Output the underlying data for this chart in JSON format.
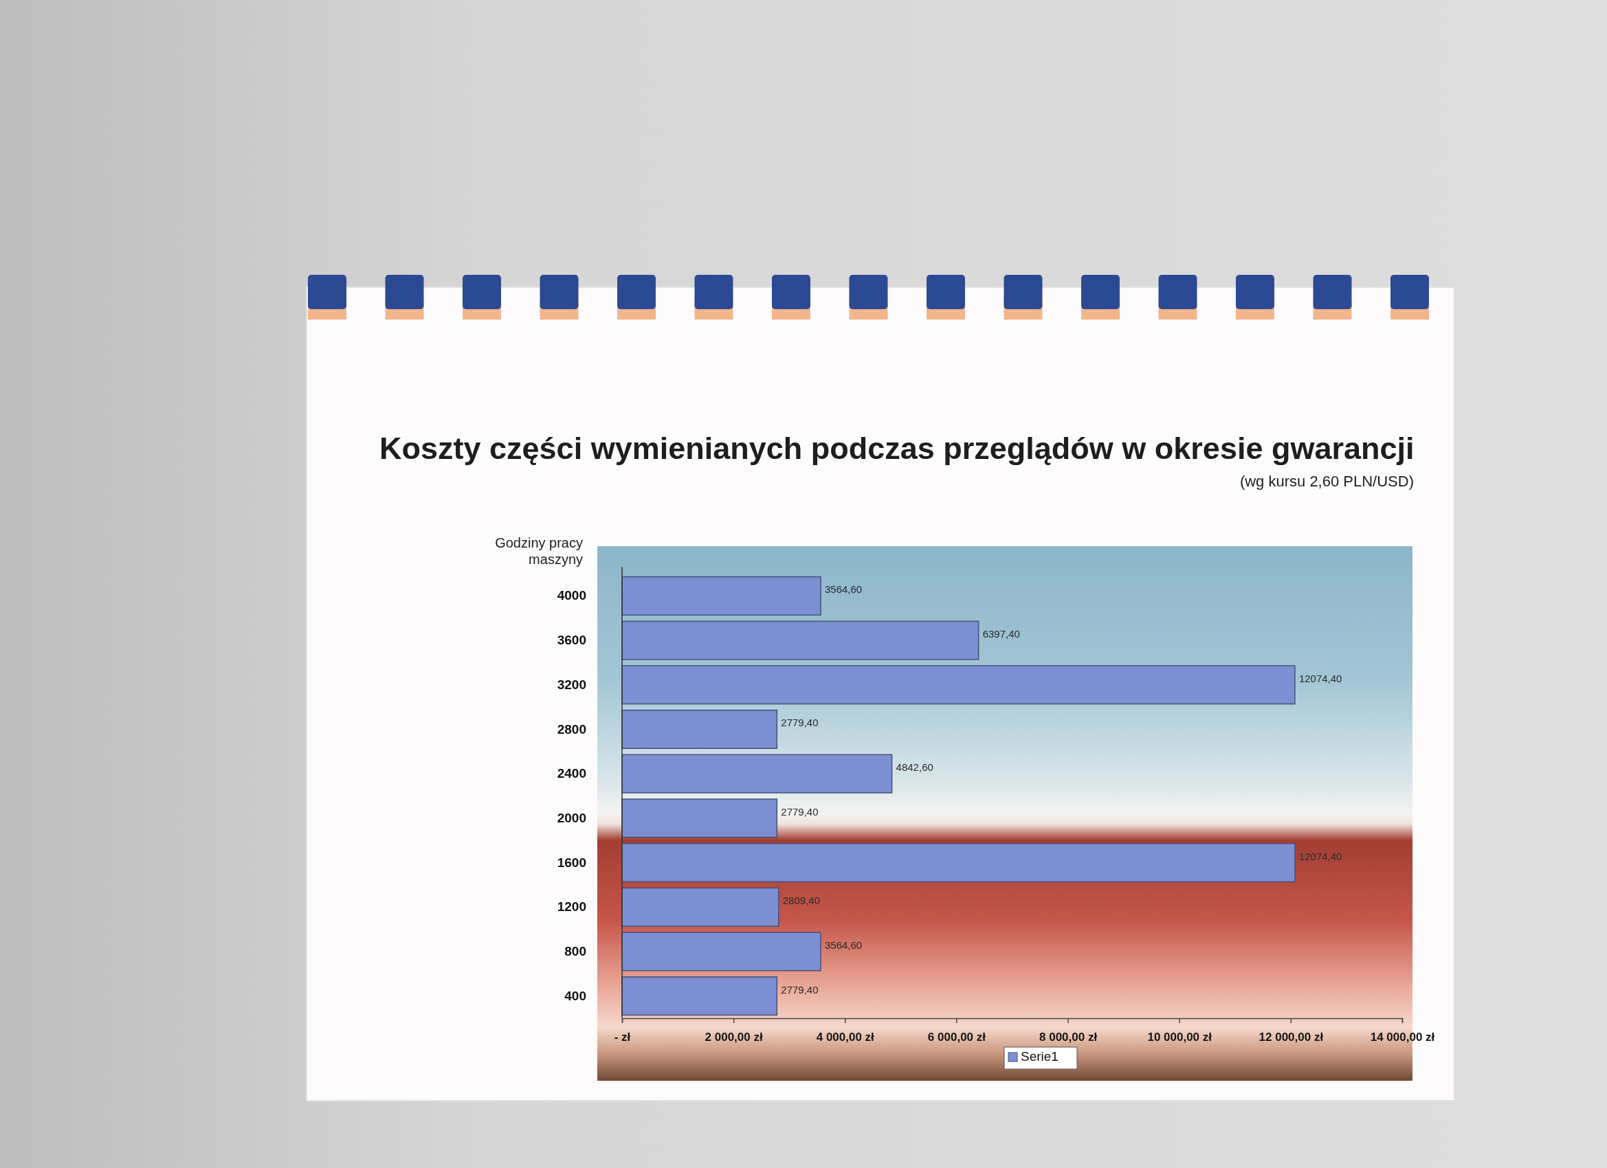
{
  "chart_data": {
    "type": "bar",
    "orientation": "horizontal",
    "title": "Koszty części wymienianych podczas przeglądów w okresie gwarancji",
    "subtitle": "(wg kursu 2,60 PLN/USD)",
    "ylabel": "Godziny pracy maszyny",
    "categories": [
      "4000",
      "3600",
      "3200",
      "2800",
      "2400",
      "2000",
      "1600",
      "1200",
      "800",
      "400"
    ],
    "series": [
      {
        "name": "Serie1",
        "color": "#7d8fd3",
        "values": [
          3564.6,
          6397.4,
          12074.4,
          2779.4,
          4842.6,
          2779.4,
          12074.4,
          2809.4,
          3564.6,
          2779.4
        ],
        "value_labels": [
          "3564,60",
          "6397,40",
          "12074,40",
          "2779,40",
          "4842,60",
          "2779,40",
          "12074,40",
          "2809,40",
          "3564,60",
          "2779,40"
        ]
      }
    ],
    "xlim": [
      0,
      14000
    ],
    "xticks": [
      {
        "value": 0,
        "label": "- zł"
      },
      {
        "value": 2000,
        "label": "2 000,00 zł"
      },
      {
        "value": 4000,
        "label": "4 000,00 zł"
      },
      {
        "value": 6000,
        "label": "6 000,00 zł"
      },
      {
        "value": 8000,
        "label": "8 000,00 zł"
      },
      {
        "value": 10000,
        "label": "10 000,00 zł"
      },
      {
        "value": 12000,
        "label": "12 000,00 zł"
      },
      {
        "value": 14000,
        "label": "14 000,00 zł"
      }
    ],
    "legend": "bottom"
  }
}
